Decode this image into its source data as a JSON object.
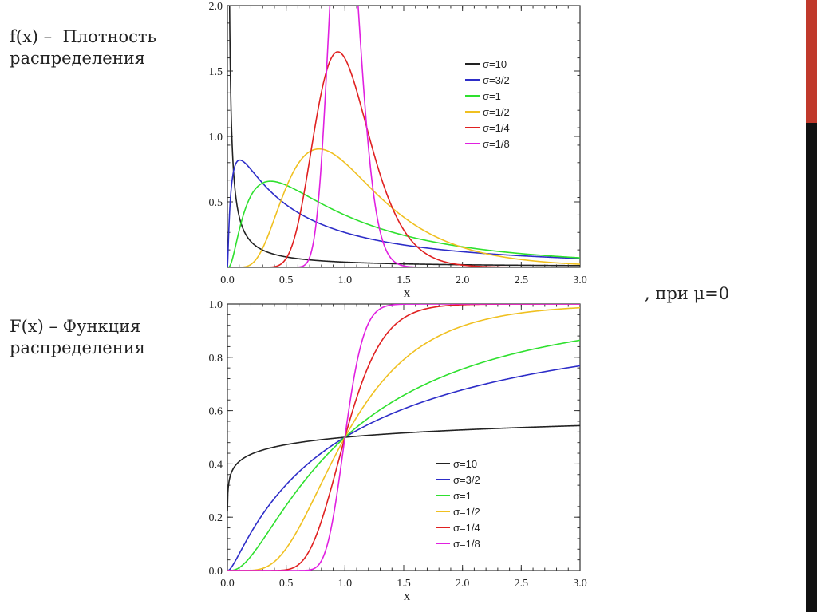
{
  "captions": {
    "pdf_line1": "f(x) –  Плотность",
    "pdf_line2": "распределения",
    "cdf_line1": "F(x) – Функция",
    "cdf_line2": "распределения",
    "parameter": ", при μ=0"
  },
  "accent": {
    "top_color": "#c0392b",
    "bottom_color": "#111111"
  },
  "chart_data": [
    {
      "type": "line",
      "title": "",
      "xlabel": "x",
      "ylabel": "",
      "xlim": [
        0,
        3
      ],
      "ylim": [
        0,
        2
      ],
      "xticks": [
        "0.0",
        "0.5",
        "1.0",
        "1.5",
        "2.0",
        "2.5",
        "3.0"
      ],
      "yticks": [
        "0.5",
        "1.0",
        "1.5",
        "2.0"
      ],
      "legend_position": "top-right",
      "function": "lognormal_pdf",
      "series": [
        {
          "name": "σ=10",
          "sigma": 10,
          "color": "#222222"
        },
        {
          "name": "σ=3/2",
          "sigma": 1.5,
          "color": "#2d2dc8"
        },
        {
          "name": "σ=1",
          "sigma": 1,
          "color": "#2ee02e"
        },
        {
          "name": "σ=1/2",
          "sigma": 0.5,
          "color": "#f0c020"
        },
        {
          "name": "σ=1/4",
          "sigma": 0.25,
          "color": "#e02020"
        },
        {
          "name": "σ=1/8",
          "sigma": 0.125,
          "color": "#e020e0"
        }
      ]
    },
    {
      "type": "line",
      "title": "",
      "xlabel": "x",
      "ylabel": "",
      "xlim": [
        0,
        3
      ],
      "ylim": [
        0,
        1
      ],
      "xticks": [
        "0.0",
        "0.5",
        "1.0",
        "1.5",
        "2.0",
        "2.5",
        "3.0"
      ],
      "yticks": [
        "0.0",
        "0.2",
        "0.4",
        "0.6",
        "0.8",
        "1.0"
      ],
      "legend_position": "bottom-right",
      "function": "lognormal_cdf",
      "series": [
        {
          "name": "σ=10",
          "sigma": 10,
          "color": "#222222"
        },
        {
          "name": "σ=3/2",
          "sigma": 1.5,
          "color": "#2d2dc8"
        },
        {
          "name": "σ=1",
          "sigma": 1,
          "color": "#2ee02e"
        },
        {
          "name": "σ=1/2",
          "sigma": 0.5,
          "color": "#f0c020"
        },
        {
          "name": "σ=1/4",
          "sigma": 0.25,
          "color": "#e02020"
        },
        {
          "name": "σ=1/8",
          "sigma": 0.125,
          "color": "#e020e0"
        }
      ]
    }
  ]
}
